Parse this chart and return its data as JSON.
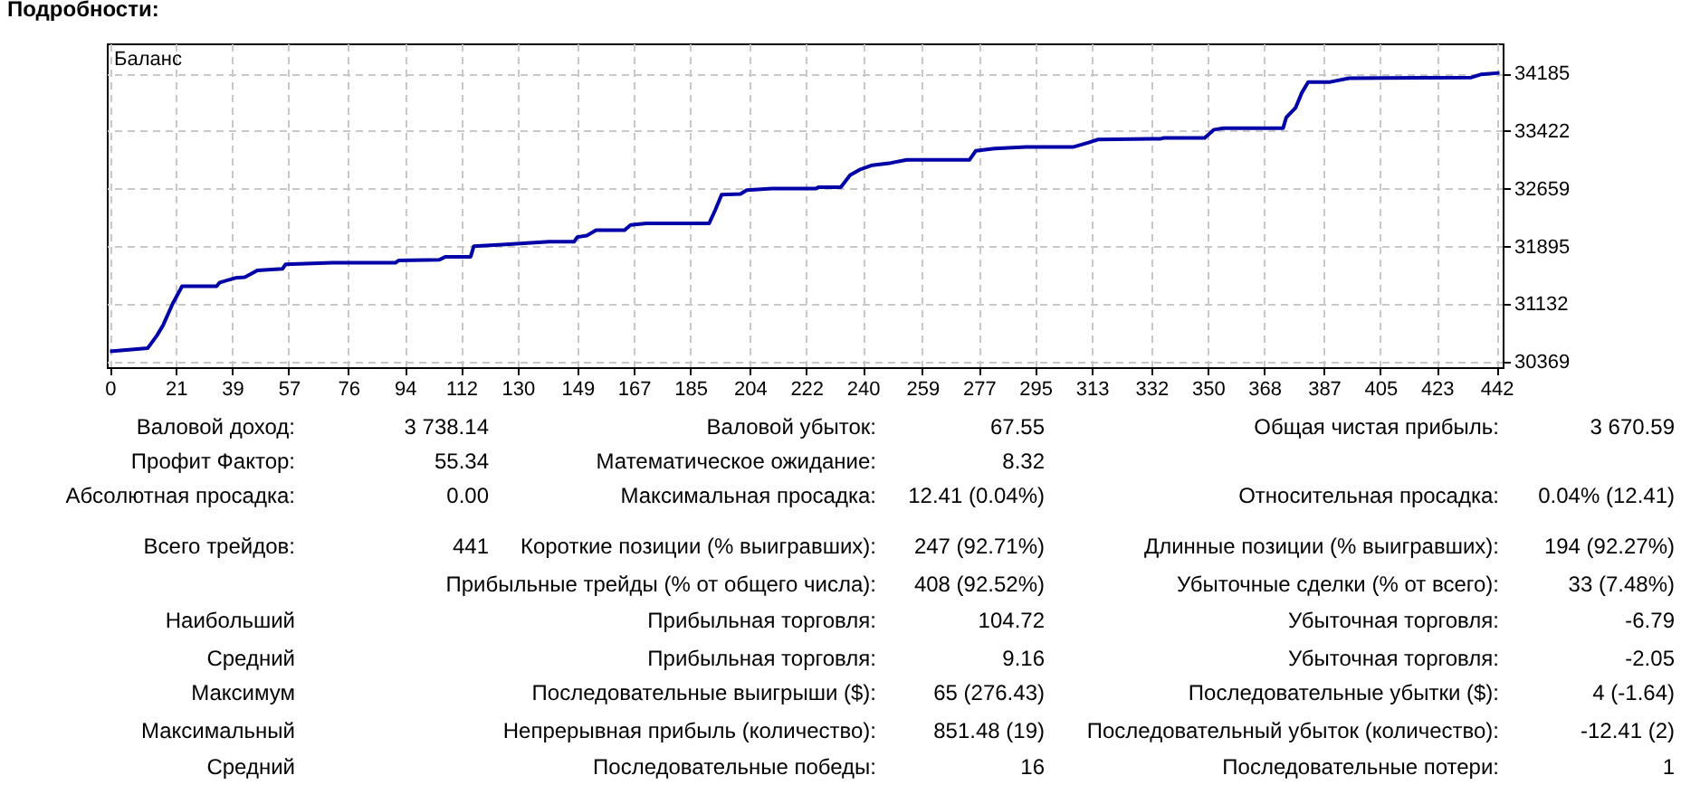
{
  "chart_data": [
    {
      "type": "line",
      "title": "Подробности:",
      "x": [
        0,
        12,
        15,
        17,
        20,
        23,
        34,
        35,
        40,
        43,
        47,
        55,
        56,
        71,
        91,
        92,
        105,
        107,
        115,
        116,
        125,
        140,
        148,
        149,
        152,
        155,
        164,
        166,
        171,
        191,
        193,
        195,
        201,
        203,
        211,
        225,
        226,
        233,
        236,
        239,
        243,
        249,
        254,
        274,
        276,
        282,
        292,
        307,
        312,
        315,
        335,
        336,
        349,
        352,
        355,
        374,
        375,
        378,
        380,
        382,
        389,
        395,
        434,
        437,
        443
      ],
      "series": [
        {
          "name": "Баланс",
          "color": "#0000a8",
          "values": [
            30510,
            30550,
            30720,
            30860,
            31140,
            31370,
            31370,
            31420,
            31480,
            31490,
            31580,
            31600,
            31660,
            31680,
            31680,
            31710,
            31720,
            31760,
            31760,
            31900,
            31920,
            31960,
            31960,
            32020,
            32040,
            32110,
            32110,
            32180,
            32200,
            32200,
            32380,
            32580,
            32590,
            32640,
            32660,
            32660,
            32680,
            32680,
            32840,
            32910,
            32970,
            33000,
            33040,
            33040,
            33160,
            33190,
            33210,
            33210,
            33270,
            33310,
            33320,
            33330,
            33330,
            33440,
            33460,
            33460,
            33600,
            33730,
            33930,
            34070,
            34070,
            34120,
            34130,
            34170,
            34190
          ]
        }
      ],
      "xlim": [
        -1,
        444
      ],
      "xticks": [
        0,
        21,
        39,
        57,
        76,
        94,
        112,
        130,
        149,
        167,
        185,
        204,
        222,
        240,
        259,
        277,
        295,
        313,
        332,
        350,
        368,
        387,
        405,
        423,
        442
      ],
      "ylim": [
        30300,
        34580
      ],
      "yticks": [
        30369,
        31132,
        31895,
        32659,
        33422,
        34185
      ],
      "grid": true,
      "legend": "top left"
    },
    {
      "type": "other",
      "annotations": [
        "Валовой доход:",
        "3 738.14",
        "Валовой убыток:",
        "67.55",
        "Общая чистая прибыль:",
        "3 670.59",
        "Профит Фактор:",
        "55.34",
        "Математическое ожидание:",
        "8.32",
        "Абсолютная просадка:",
        "0.00",
        "Максимальная просадка:",
        "12.41 (0.04%)",
        "Относительная просадка:",
        "0.04% (12.41)",
        "Всего трейдов:",
        "441",
        "Короткие позиции (% выигравших):",
        "247 (92.71%)",
        "Длинные позиции (% выигравших):",
        "194 (92.27%)",
        "Прибыльные трейды (% от общего числа):",
        "408 (92.52%)",
        "Убыточные сделки (% от всего):",
        "33 (7.48%)",
        "Наибольший",
        "Прибыльная торговля:",
        "104.72",
        "Убыточная торговля:",
        "-6.79",
        "Средний",
        "Прибыльная торговля:",
        "9.16",
        "Убыточная торговля:",
        "-2.05",
        "Максимум",
        "Последовательные выигрыши ($):",
        "65 (276.43)",
        "Последовательные убытки ($):",
        "4 (-1.64)",
        "Максимальный",
        "Непрерывная прибыль (количество):",
        "851.48 (19)",
        "Последовательный убыток (количество):",
        "-12.41 (2)",
        "Средний",
        "Последовательные победы:",
        "16",
        "Последовательные потери:",
        "1"
      ]
    }
  ]
}
